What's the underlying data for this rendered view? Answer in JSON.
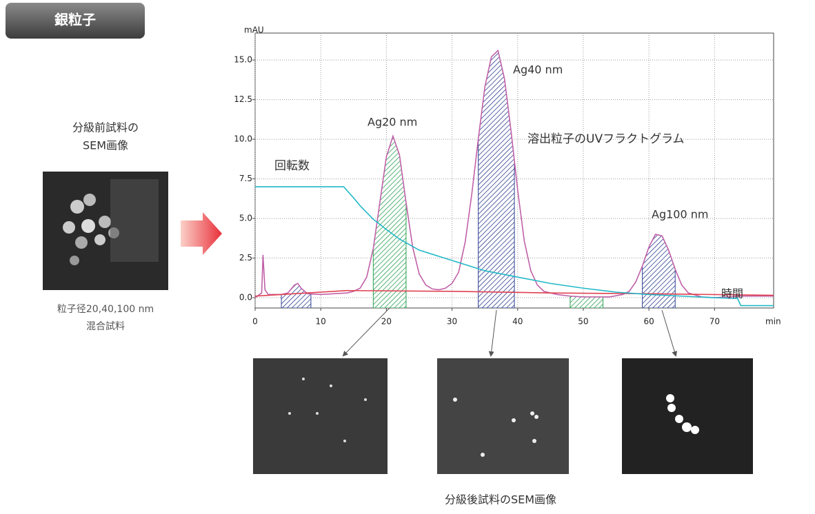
{
  "header": {
    "title": "銀粒子"
  },
  "before": {
    "caption": [
      "分級前試料の",
      "SEM画像"
    ],
    "note": [
      "粒子径20,40,100 nm",
      "混合試料"
    ]
  },
  "after": {
    "caption": "分級後試料のSEM画像"
  },
  "chart_data": {
    "type": "line",
    "y_label": "mAU",
    "x_label": "min",
    "xlim": [
      0,
      79
    ],
    "ylim": [
      -0.65,
      16.7
    ],
    "xticks": [
      0,
      10,
      20,
      30,
      40,
      50,
      60,
      70
    ],
    "yticks": [
      {
        "value": 0,
        "label": "0.0"
      },
      {
        "value": 2.5,
        "label": "2.5"
      },
      {
        "value": 5,
        "label": "5.0"
      },
      {
        "value": 7.5,
        "label": "7.5"
      },
      {
        "value": 10,
        "label": "10.0"
      },
      {
        "value": 12.5,
        "label": "12.5"
      },
      {
        "value": 15,
        "label": "15.0"
      }
    ],
    "grid": true,
    "series": [
      {
        "name": "溶出粒子のUVフラクトグラム",
        "color": "#c060a8",
        "x": [
          0,
          1,
          1.2,
          1.5,
          2,
          4,
          5,
          6,
          6.5,
          7,
          8,
          10,
          12,
          14,
          15,
          16,
          17,
          18,
          19,
          20,
          21,
          22,
          23,
          24,
          25,
          26,
          27,
          28,
          29,
          30,
          31,
          32,
          33,
          34,
          35,
          36,
          37,
          38,
          39,
          40,
          41,
          42,
          43,
          44,
          46,
          48,
          50,
          52,
          54,
          56,
          57,
          58,
          59,
          60,
          61,
          62,
          63,
          64,
          65,
          66,
          68,
          70,
          72,
          74,
          76,
          78,
          79
        ],
        "values": [
          0.0,
          0.3,
          2.7,
          0.5,
          0.2,
          0.2,
          0.3,
          0.8,
          0.9,
          0.6,
          0.25,
          0.2,
          0.25,
          0.3,
          0.4,
          0.6,
          1.3,
          3.1,
          6.0,
          8.9,
          10.2,
          9.0,
          6.0,
          3.2,
          1.5,
          0.8,
          0.55,
          0.5,
          0.6,
          0.9,
          1.6,
          3.5,
          6.5,
          10.0,
          13.3,
          15.2,
          15.6,
          13.8,
          10.5,
          6.8,
          3.6,
          1.7,
          0.8,
          0.4,
          0.2,
          0.1,
          0.05,
          0.05,
          0.05,
          0.2,
          0.4,
          1.0,
          2.0,
          3.2,
          4.0,
          3.9,
          3.0,
          1.8,
          0.8,
          0.3,
          0.05,
          0.0,
          0.05,
          0.1,
          0.1,
          0.1,
          0.1
        ]
      },
      {
        "color": "#e04050",
        "x": [
          0,
          14,
          30,
          45,
          60,
          79
        ],
        "values": [
          0.1,
          0.45,
          0.4,
          0.3,
          0.25,
          0.15
        ]
      },
      {
        "name": "回転数",
        "color": "#20b8c8",
        "x": [
          0,
          13.5,
          15,
          16,
          18,
          20,
          22,
          25,
          30,
          35,
          40,
          45,
          50,
          55,
          60,
          65,
          70,
          73.5,
          74,
          79
        ],
        "values": [
          7.0,
          7.0,
          6.3,
          5.8,
          4.95,
          4.3,
          3.7,
          3.0,
          2.35,
          1.7,
          1.3,
          0.9,
          0.6,
          0.35,
          0.2,
          0.1,
          0.0,
          -0.05,
          -0.5,
          -0.5
        ]
      }
    ],
    "fractions": [
      {
        "x": [
          4,
          8.5
        ],
        "color": "#2b3e8f"
      },
      {
        "x": [
          18,
          23
        ],
        "color": "#2aa050"
      },
      {
        "x": [
          34,
          39.5
        ],
        "color": "#2b3e8f"
      },
      {
        "x": [
          48,
          53
        ],
        "color": "#2aa050"
      },
      {
        "x": [
          59,
          64
        ],
        "color": "#2b3e8f"
      }
    ],
    "annotations": [
      "Ag20 nm",
      "Ag40 nm",
      "Ag100 nm",
      "時間"
    ]
  }
}
